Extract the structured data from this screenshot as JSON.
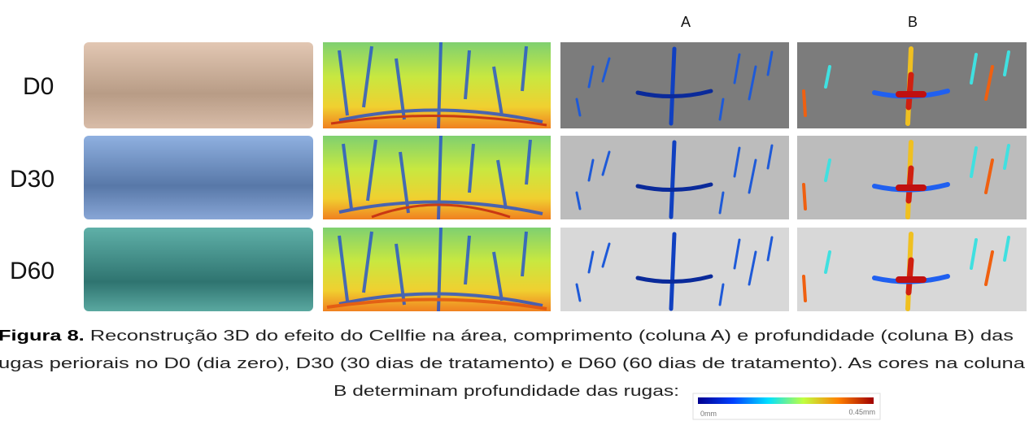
{
  "headers": [
    "A",
    "B"
  ],
  "rows": [
    "D0",
    "D30",
    "D60"
  ],
  "caption": {
    "label": "Figura 8.",
    "line1": "Reconstrução 3D do efeito do Cellfie na área, comprimento (coluna A) e profundidade (coluna B) das",
    "line2": "ugas periorais no D0 (dia zero), D30 (30 dias de tratamento) e D60 (60 dias de tratamento). As cores na coluna",
    "line3": "B determinam profundidade das rugas:"
  },
  "colorbar": {
    "min_label": "0mm",
    "max_label": "0.45mm"
  }
}
